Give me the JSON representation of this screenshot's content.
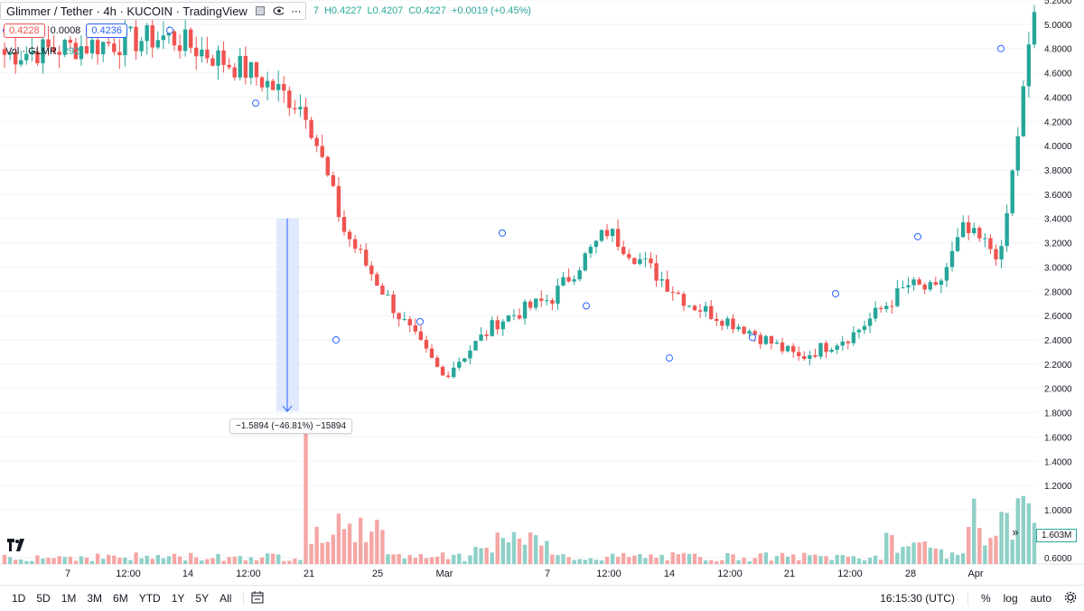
{
  "legend": {
    "title": "Glimmer / Tether · 4h · KUCOIN · TradingView",
    "eye_icon": "eye-icon",
    "more_icon": "more-dots-icon",
    "ohlc_open": "7",
    "ohlc_high": "H0.4227",
    "ohlc_low": "L0.4207",
    "ohlc_close": "C0.4227",
    "ohlc_change": "+0.0019 (+0.45%)"
  },
  "order": {
    "sell_price": "0.4228",
    "spread": "0.0008",
    "buy_price": "0.4236"
  },
  "volume_legend": {
    "label": "Vol · GLMR",
    "value": "292"
  },
  "measure": {
    "label": "−1.5894 (−46.81%) −15894"
  },
  "volume_badge": "1.603M",
  "colors": {
    "up": "#26a69a",
    "down": "#ef5350",
    "up_volume": "#8ed0c8",
    "down_volume": "#f5a6a4",
    "measure_fill": "#d6e2fc",
    "measure_line": "#2962ff"
  },
  "toolbar": {
    "timeframes": [
      "1D",
      "5D",
      "1M",
      "3M",
      "6M",
      "YTD",
      "1Y",
      "5Y",
      "All"
    ],
    "range_icon": "calendar-range-icon",
    "clock": "16:15:30 (UTC)",
    "percent": "%",
    "log": "log",
    "auto": "auto",
    "settings_icon": "gear-icon"
  },
  "chart_data": {
    "type": "candlestick",
    "price_axis": {
      "min": 0.6,
      "max": 5.2,
      "ticks": [
        "5.2000",
        "5.0000",
        "4.8000",
        "4.6000",
        "4.4000",
        "4.2000",
        "4.0000",
        "3.8000",
        "3.6000",
        "3.4000",
        "3.2000",
        "3.0000",
        "2.8000",
        "2.6000",
        "2.4000",
        "2.2000",
        "2.0000",
        "1.8000",
        "1.6000",
        "1.4000",
        "1.2000",
        "1.0000",
        "0.6000"
      ]
    },
    "time_axis": {
      "labels": [
        "7",
        "12:00",
        "14",
        "12:00",
        "21",
        "25",
        "Mar",
        "7",
        "12:00",
        "14",
        "12:00",
        "21",
        "12:00",
        "28",
        "Apr"
      ]
    },
    "series_key_points": {
      "x_index": [
        0,
        30,
        45,
        55,
        62,
        72,
        80,
        90,
        100,
        110,
        125,
        135,
        145,
        155,
        165,
        170,
        175,
        182,
        188
      ],
      "close": [
        4.75,
        4.9,
        4.6,
        4.3,
        3.3,
        2.6,
        2.1,
        2.55,
        2.75,
        3.3,
        2.7,
        2.5,
        2.25,
        2.45,
        2.85,
        2.8,
        3.3,
        3.1,
        5.1
      ]
    }
  }
}
